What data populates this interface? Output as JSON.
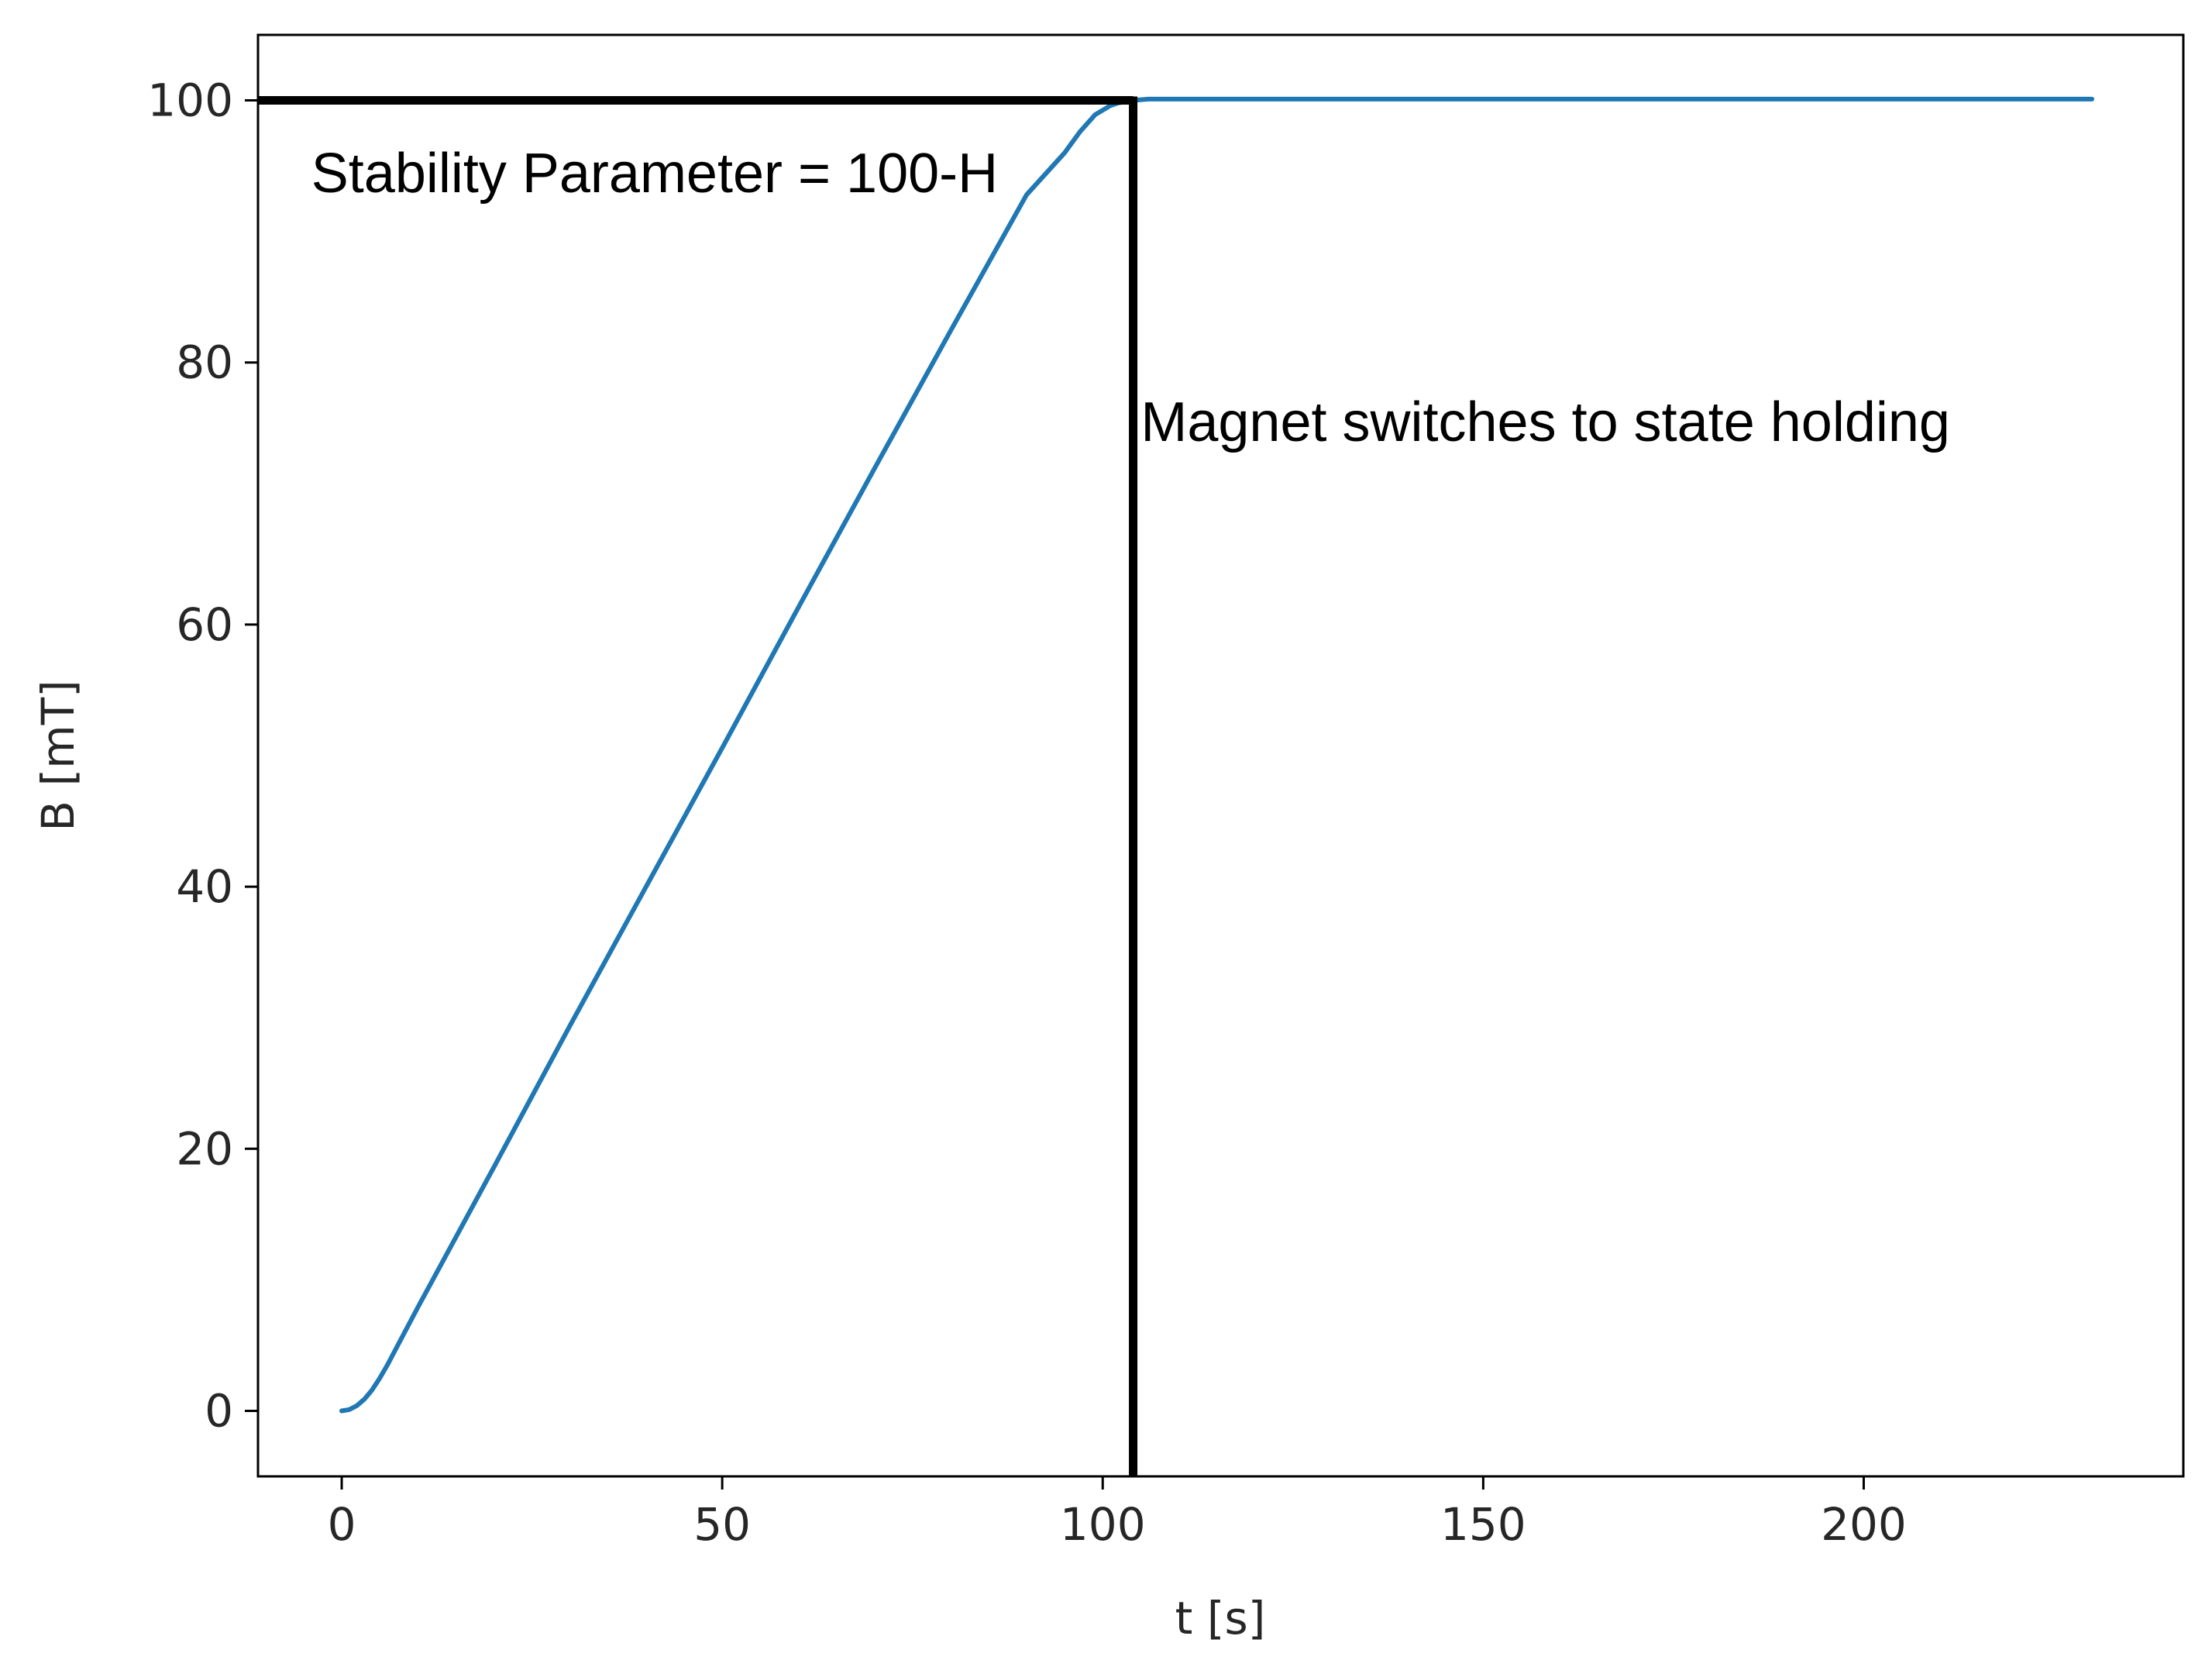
{
  "chart_data": {
    "type": "line",
    "xlabel": "t [s]",
    "ylabel": "B [mT]",
    "xlim": [
      -11,
      242
    ],
    "ylim": [
      -5,
      105
    ],
    "xticks": [
      0,
      50,
      100,
      150,
      200
    ],
    "yticks": [
      0,
      20,
      40,
      60,
      80,
      100
    ],
    "grid": false,
    "legend": "none",
    "series": [
      {
        "color": "#1f77b4",
        "x": [
          0,
          1,
          2,
          3,
          4,
          5,
          6,
          8,
          10,
          20,
          30,
          40,
          50,
          60,
          70,
          80,
          90,
          95,
          97,
          99,
          101,
          102,
          103,
          104,
          106,
          110,
          120,
          150,
          200,
          230
        ],
        "y": [
          0,
          0.1,
          0.4,
          0.9,
          1.6,
          2.5,
          3.5,
          5.7,
          7.9,
          18.6,
          29.4,
          40.0,
          50.6,
          61.3,
          71.9,
          82.4,
          92.8,
          96.0,
          97.6,
          98.9,
          99.6,
          99.8,
          99.9,
          100.0,
          100.1,
          100.1,
          100.1,
          100.1,
          100.1,
          100.1
        ]
      }
    ],
    "guides": {
      "horizontal": {
        "y": 100,
        "x_from": -11,
        "x_to": 104
      },
      "vertical": {
        "x": 104,
        "y_from": -5,
        "y_to": 100
      },
      "color": "#000000"
    },
    "annotations": [
      {
        "text": "Stability Parameter = 100-H",
        "x": -4,
        "y": 93
      },
      {
        "text": "Magnet switches to state holding",
        "x": 105,
        "y": 74
      }
    ]
  }
}
